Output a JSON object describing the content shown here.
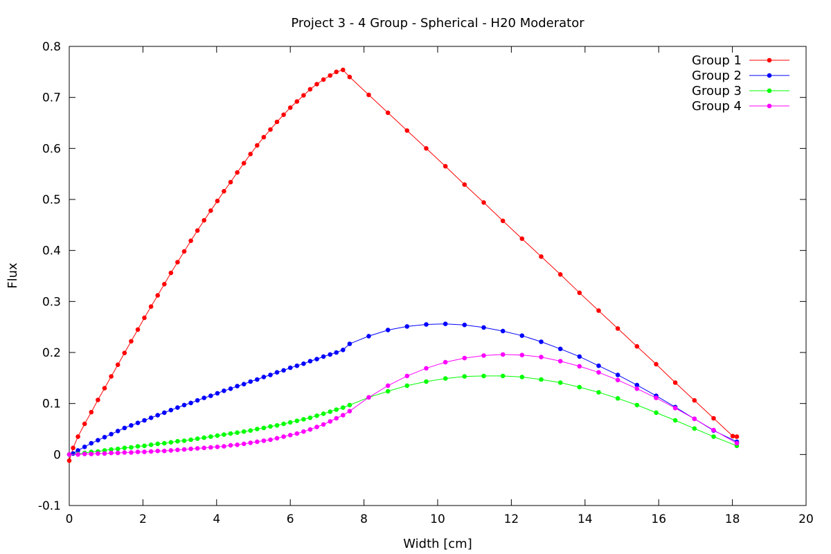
{
  "chart_data": {
    "type": "line",
    "title": "Project 3 - 4 Group - Spherical - H20 Moderator",
    "xlabel": "Width [cm]",
    "ylabel": "Flux",
    "xlim": [
      0,
      20
    ],
    "ylim": [
      -0.1,
      0.8
    ],
    "x_ticks": [
      0,
      2,
      4,
      6,
      8,
      10,
      12,
      14,
      16,
      18,
      20
    ],
    "y_ticks": [
      -0.1,
      0,
      0.1,
      0.2,
      0.3,
      0.4,
      0.5,
      0.6,
      0.7,
      0.8
    ],
    "grid": false,
    "legend_position": "top-right",
    "series": [
      {
        "name": "Group 1",
        "color": "#ff0000",
        "x": [
          0.0,
          0.106,
          0.237,
          0.418,
          0.598,
          0.779,
          0.959,
          1.14,
          1.32,
          1.5,
          1.68,
          1.86,
          2.04,
          2.22,
          2.4,
          2.58,
          2.76,
          2.94,
          3.12,
          3.3,
          3.48,
          3.66,
          3.84,
          4.02,
          4.2,
          4.38,
          4.56,
          4.74,
          4.92,
          5.1,
          5.28,
          5.46,
          5.64,
          5.82,
          6.0,
          6.18,
          6.36,
          6.54,
          6.72,
          6.9,
          7.08,
          7.25,
          7.43,
          7.61,
          8.13,
          8.65,
          9.17,
          9.69,
          10.21,
          10.73,
          11.25,
          11.77,
          12.29,
          12.81,
          13.33,
          13.85,
          14.37,
          14.89,
          15.41,
          15.93,
          16.45,
          16.97,
          17.49,
          18.01,
          18.12
        ],
        "y": [
          -0.012,
          0.013,
          0.035,
          0.06,
          0.083,
          0.107,
          0.13,
          0.153,
          0.176,
          0.199,
          0.222,
          0.245,
          0.268,
          0.29,
          0.312,
          0.334,
          0.356,
          0.377,
          0.398,
          0.419,
          0.439,
          0.459,
          0.478,
          0.497,
          0.516,
          0.534,
          0.553,
          0.571,
          0.589,
          0.606,
          0.622,
          0.637,
          0.652,
          0.666,
          0.68,
          0.692,
          0.704,
          0.716,
          0.726,
          0.735,
          0.743,
          0.75,
          0.754,
          0.74,
          0.705,
          0.67,
          0.635,
          0.6,
          0.565,
          0.529,
          0.494,
          0.458,
          0.423,
          0.388,
          0.353,
          0.317,
          0.282,
          0.247,
          0.212,
          0.177,
          0.141,
          0.106,
          0.071,
          0.036,
          0.035
        ]
      },
      {
        "name": "Group 2",
        "color": "#0000ff",
        "x": [
          0.0,
          0.106,
          0.237,
          0.418,
          0.598,
          0.779,
          0.959,
          1.14,
          1.32,
          1.5,
          1.68,
          1.86,
          2.04,
          2.22,
          2.4,
          2.58,
          2.76,
          2.94,
          3.12,
          3.3,
          3.48,
          3.66,
          3.84,
          4.02,
          4.2,
          4.38,
          4.56,
          4.74,
          4.92,
          5.1,
          5.28,
          5.46,
          5.64,
          5.82,
          6.0,
          6.18,
          6.36,
          6.54,
          6.72,
          6.9,
          7.08,
          7.25,
          7.43,
          7.61,
          8.13,
          8.65,
          9.17,
          9.69,
          10.21,
          10.73,
          11.25,
          11.77,
          12.29,
          12.81,
          13.33,
          13.85,
          14.37,
          14.89,
          15.41,
          15.93,
          16.45,
          16.97,
          17.49,
          18.12
        ],
        "y": [
          0.0,
          0.002,
          0.008,
          0.015,
          0.022,
          0.028,
          0.034,
          0.04,
          0.046,
          0.052,
          0.057,
          0.062,
          0.067,
          0.072,
          0.077,
          0.082,
          0.087,
          0.092,
          0.097,
          0.101,
          0.106,
          0.111,
          0.115,
          0.12,
          0.125,
          0.129,
          0.134,
          0.138,
          0.143,
          0.147,
          0.152,
          0.156,
          0.161,
          0.165,
          0.17,
          0.174,
          0.178,
          0.183,
          0.187,
          0.192,
          0.196,
          0.2,
          0.205,
          0.217,
          0.232,
          0.244,
          0.251,
          0.255,
          0.256,
          0.254,
          0.249,
          0.242,
          0.233,
          0.221,
          0.207,
          0.192,
          0.174,
          0.156,
          0.136,
          0.115,
          0.093,
          0.07,
          0.047,
          0.025
        ]
      },
      {
        "name": "Group 3",
        "color": "#00ff00",
        "x": [
          0.0,
          0.237,
          0.418,
          0.598,
          0.779,
          0.959,
          1.14,
          1.32,
          1.5,
          1.68,
          1.86,
          2.04,
          2.22,
          2.4,
          2.58,
          2.76,
          2.94,
          3.12,
          3.3,
          3.48,
          3.66,
          3.84,
          4.02,
          4.2,
          4.38,
          4.56,
          4.74,
          4.92,
          5.1,
          5.28,
          5.46,
          5.64,
          5.82,
          6.0,
          6.18,
          6.36,
          6.54,
          6.72,
          6.9,
          7.08,
          7.25,
          7.43,
          7.61,
          8.13,
          8.65,
          9.17,
          9.69,
          10.21,
          10.73,
          11.25,
          11.77,
          12.29,
          12.81,
          13.33,
          13.85,
          14.37,
          14.89,
          15.41,
          15.93,
          16.45,
          16.97,
          17.49,
          18.12
        ],
        "y": [
          0.0,
          0.001,
          0.003,
          0.005,
          0.006,
          0.008,
          0.01,
          0.011,
          0.013,
          0.014,
          0.016,
          0.017,
          0.019,
          0.021,
          0.022,
          0.024,
          0.026,
          0.027,
          0.029,
          0.031,
          0.033,
          0.035,
          0.037,
          0.039,
          0.041,
          0.043,
          0.045,
          0.047,
          0.05,
          0.052,
          0.055,
          0.057,
          0.06,
          0.063,
          0.066,
          0.069,
          0.072,
          0.076,
          0.08,
          0.084,
          0.088,
          0.092,
          0.097,
          0.112,
          0.124,
          0.135,
          0.143,
          0.149,
          0.153,
          0.154,
          0.154,
          0.152,
          0.147,
          0.141,
          0.132,
          0.122,
          0.11,
          0.097,
          0.082,
          0.067,
          0.051,
          0.035,
          0.017
        ]
      },
      {
        "name": "Group 4",
        "color": "#ff00ff",
        "x": [
          0.0,
          0.237,
          0.418,
          0.598,
          0.779,
          0.959,
          1.14,
          1.32,
          1.5,
          1.68,
          1.86,
          2.04,
          2.22,
          2.4,
          2.58,
          2.76,
          2.94,
          3.12,
          3.3,
          3.48,
          3.66,
          3.84,
          4.02,
          4.2,
          4.38,
          4.56,
          4.74,
          4.92,
          5.1,
          5.28,
          5.46,
          5.64,
          5.82,
          6.0,
          6.18,
          6.36,
          6.54,
          6.72,
          6.9,
          7.08,
          7.25,
          7.43,
          7.61,
          8.13,
          8.65,
          9.17,
          9.69,
          10.21,
          10.73,
          11.25,
          11.77,
          12.29,
          12.81,
          13.33,
          13.85,
          14.37,
          14.89,
          15.41,
          15.93,
          16.45,
          16.97,
          17.49,
          18.12
        ],
        "y": [
          0.0,
          0.0,
          0.001,
          0.001,
          0.002,
          0.002,
          0.003,
          0.003,
          0.004,
          0.004,
          0.005,
          0.005,
          0.006,
          0.007,
          0.007,
          0.008,
          0.009,
          0.01,
          0.011,
          0.012,
          0.013,
          0.014,
          0.015,
          0.016,
          0.018,
          0.019,
          0.021,
          0.023,
          0.025,
          0.027,
          0.029,
          0.032,
          0.035,
          0.038,
          0.041,
          0.045,
          0.049,
          0.054,
          0.059,
          0.065,
          0.071,
          0.077,
          0.085,
          0.112,
          0.135,
          0.154,
          0.169,
          0.181,
          0.189,
          0.194,
          0.196,
          0.195,
          0.191,
          0.183,
          0.173,
          0.161,
          0.146,
          0.129,
          0.111,
          0.091,
          0.07,
          0.048,
          0.022
        ]
      }
    ]
  }
}
